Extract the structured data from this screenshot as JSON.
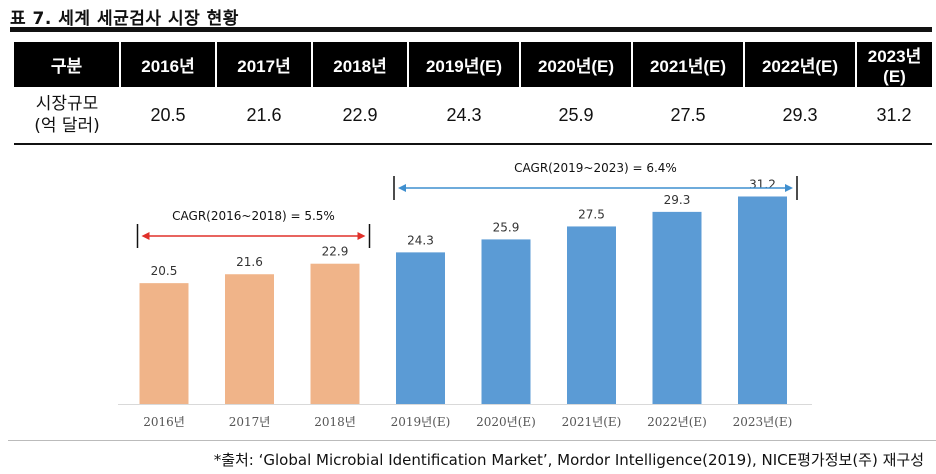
{
  "table_title": "표 7. 세계 세균검사 시장 현황",
  "table": {
    "header_label": "구분",
    "row_label_line1": "시장규모",
    "row_label_line2": "(억 달러)",
    "columns": [
      "2016년",
      "2017년",
      "2018년",
      "2019년(E)",
      "2020년(E)",
      "2021년(E)",
      "2022년(E)",
      "2023년(E)"
    ],
    "values": [
      "20.5",
      "21.6",
      "22.9",
      "24.3",
      "25.9",
      "27.5",
      "29.3",
      "31.2"
    ]
  },
  "chart_data": {
    "type": "bar",
    "categories": [
      "2016년",
      "2017년",
      "2018년",
      "2019년(E)",
      "2020년(E)",
      "2021년(E)",
      "2022년(E)",
      "2023년(E)"
    ],
    "values": [
      20.5,
      21.6,
      22.9,
      24.3,
      25.9,
      27.5,
      29.3,
      31.2
    ],
    "value_labels": [
      "20.5",
      "21.6",
      "22.9",
      "24.3",
      "25.9",
      "27.5",
      "29.3",
      "31.2"
    ],
    "bar_colors": [
      "#f0b489",
      "#f0b489",
      "#f0b489",
      "#5b9bd5",
      "#5b9bd5",
      "#5b9bd5",
      "#5b9bd5",
      "#5b9bd5"
    ],
    "ylim": [
      0,
      35
    ],
    "title": "",
    "xlabel": "",
    "ylabel": "",
    "annotations": [
      {
        "text": "CAGR(2016~2018) = 5.5%",
        "from_category": 0,
        "to_category": 2,
        "color": "#e0302a"
      },
      {
        "text": "CAGR(2019~2023) = 6.4%",
        "from_category": 3,
        "to_category": 7,
        "color": "#3f8fcf"
      }
    ]
  },
  "source_text": "*출처: ‘Global Microbial Identification Market’, Mordor Intelligence(2019), NICE평가정보(주) 재구성"
}
